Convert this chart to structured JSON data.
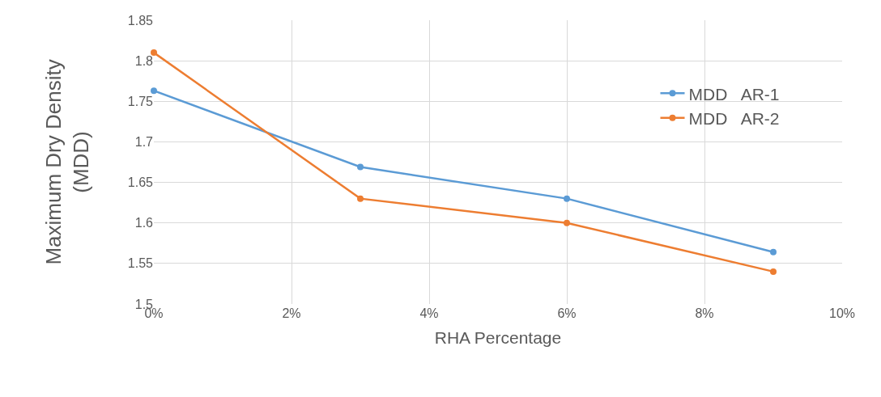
{
  "chart_data": {
    "type": "line",
    "xlabel": "RHA Percentage",
    "ylabel": "Maximum Dry Density\n(MDD)",
    "x": [
      0,
      3,
      6,
      9
    ],
    "series": [
      {
        "name": "MDD   AR-1",
        "color": "#5b9bd5",
        "values": [
          1.763,
          1.669,
          1.63,
          1.564
        ]
      },
      {
        "name": "MDD   AR-2",
        "color": "#ed7d31",
        "values": [
          1.81,
          1.63,
          1.6,
          1.54
        ]
      }
    ],
    "xlim": [
      0,
      10
    ],
    "xticks": [
      {
        "value": 0,
        "label": "0%"
      },
      {
        "value": 2,
        "label": "2%"
      },
      {
        "value": 4,
        "label": "4%"
      },
      {
        "value": 6,
        "label": "6%"
      },
      {
        "value": 8,
        "label": "8%"
      },
      {
        "value": 10,
        "label": "10%"
      }
    ],
    "ylim": [
      1.5,
      1.85
    ],
    "yticks": [
      1.5,
      1.55,
      1.6,
      1.65,
      1.7,
      1.75,
      1.8,
      1.85
    ],
    "grid": true,
    "legend": "right",
    "marker": "circle",
    "line_style": "solid"
  }
}
